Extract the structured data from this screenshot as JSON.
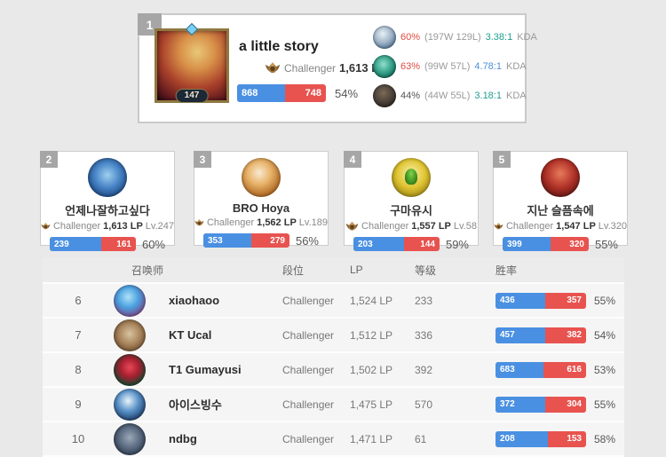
{
  "palette": {
    "red": "#dd4b42",
    "teal": "#1fa08e",
    "blue": "#4a90d9",
    "gray": "#555555"
  },
  "top_card": {
    "rank": "1",
    "name": "a little story",
    "summoner_level": "147",
    "tier": "Challenger",
    "lp": "1,613 LP",
    "wins": "868",
    "losses": "748",
    "winrate": "54%",
    "kda_label": "KDA",
    "champions": [
      {
        "icon": "champion-icon-1",
        "winrate": "60%",
        "winrate_color": "red",
        "record": "(197W 129L)",
        "kda": "3.38:1",
        "kda_color": "teal"
      },
      {
        "icon": "champion-icon-2",
        "winrate": "63%",
        "winrate_color": "red",
        "record": "(99W 57L)",
        "kda": "4.78:1",
        "kda_color": "blue"
      },
      {
        "icon": "champion-icon-3",
        "winrate": "44%",
        "winrate_color": "gray",
        "record": "(44W 55L)",
        "kda": "3.18:1",
        "kda_color": "teal"
      }
    ]
  },
  "cards": [
    {
      "rank": "2",
      "name": "언제나잘하고싶다",
      "tier": "Challenger",
      "lp": "1,613 LP",
      "level": "Lv.247",
      "wins": "239",
      "losses": "161",
      "winrate": "60%"
    },
    {
      "rank": "3",
      "name": "BRO Hoya",
      "tier": "Challenger",
      "lp": "1,562 LP",
      "level": "Lv.189",
      "wins": "353",
      "losses": "279",
      "winrate": "56%"
    },
    {
      "rank": "4",
      "name": "구마유시",
      "tier": "Challenger",
      "lp": "1,557 LP",
      "level": "Lv.58",
      "wins": "203",
      "losses": "144",
      "winrate": "59%"
    },
    {
      "rank": "5",
      "name": "지난 슬픔속에",
      "tier": "Challenger",
      "lp": "1,547 LP",
      "level": "Lv.320",
      "wins": "399",
      "losses": "320",
      "winrate": "55%"
    }
  ],
  "table": {
    "headers": {
      "summoner": "召唤师",
      "tier": "段位",
      "lp": "LP",
      "level": "等级",
      "winrate": "胜率"
    },
    "rows": [
      {
        "rank": "6",
        "name": "xiaohaoo",
        "tier": "Challenger",
        "lp": "1,524 LP",
        "level": "233",
        "wins": "436",
        "losses": "357",
        "winrate": "55%"
      },
      {
        "rank": "7",
        "name": "KT Ucal",
        "tier": "Challenger",
        "lp": "1,512 LP",
        "level": "336",
        "wins": "457",
        "losses": "382",
        "winrate": "54%"
      },
      {
        "rank": "8",
        "name": "T1 Gumayusi",
        "tier": "Challenger",
        "lp": "1,502 LP",
        "level": "392",
        "wins": "683",
        "losses": "616",
        "winrate": "53%"
      },
      {
        "rank": "9",
        "name": "아이스빙수",
        "tier": "Challenger",
        "lp": "1,475 LP",
        "level": "570",
        "wins": "372",
        "losses": "304",
        "winrate": "55%"
      },
      {
        "rank": "10",
        "name": "ndbg",
        "tier": "Challenger",
        "lp": "1,471 LP",
        "level": "61",
        "wins": "208",
        "losses": "153",
        "winrate": "58%"
      }
    ]
  }
}
